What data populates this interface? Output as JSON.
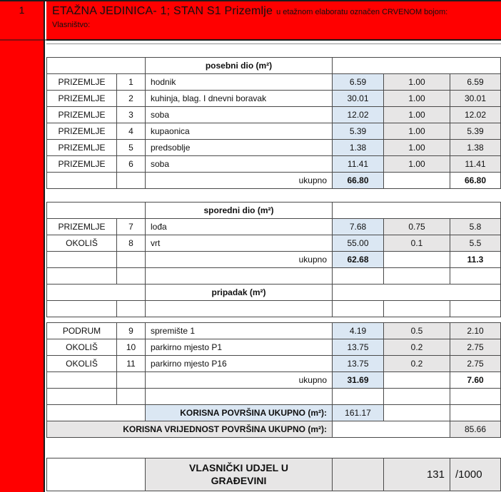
{
  "sidebar": {
    "index_label": "1"
  },
  "header": {
    "title_main": "ETAŽNA JEDINICA- 1; STAN S1 Prizemlje",
    "title_note": "u etažnom elaboratu označen CRVENOM bojom:",
    "subtitle": "Vlasništvo:"
  },
  "colors": {
    "accent_red": "#FF0000",
    "cell_blue": "#DBE7F3",
    "cell_gray": "#E7E6E6"
  },
  "sections": [
    {
      "title": "posebni dio (m²)",
      "rows": [
        {
          "loc": "PRIZEMLJE",
          "num": "1",
          "desc": "hodnik",
          "area": "6.59",
          "coef": "1.00",
          "val": "6.59"
        },
        {
          "loc": "PRIZEMLJE",
          "num": "2",
          "desc": "kuhinja, blag. I dnevni boravak",
          "area": "30.01",
          "coef": "1.00",
          "val": "30.01"
        },
        {
          "loc": "PRIZEMLJE",
          "num": "3",
          "desc": "soba",
          "area": "12.02",
          "coef": "1.00",
          "val": "12.02"
        },
        {
          "loc": "PRIZEMLJE",
          "num": "4",
          "desc": "kupaonica",
          "area": "5.39",
          "coef": "1.00",
          "val": "5.39"
        },
        {
          "loc": "PRIZEMLJE",
          "num": "5",
          "desc": "predsoblje",
          "area": "1.38",
          "coef": "1.00",
          "val": "1.38"
        },
        {
          "loc": "PRIZEMLJE",
          "num": "6",
          "desc": "soba",
          "area": "11.41",
          "coef": "1.00",
          "val": "11.41"
        }
      ],
      "total": {
        "label": "ukupno",
        "area": "66.80",
        "val": "66.80"
      }
    },
    {
      "title": "sporedni dio (m²)",
      "rows": [
        {
          "loc": "PRIZEMLJE",
          "num": "7",
          "desc": "lođa",
          "area": "7.68",
          "coef": "0.75",
          "val": "5.8"
        },
        {
          "loc": "OKOLIŠ",
          "num": "8",
          "desc": "vrt",
          "area": "55.00",
          "coef": "0.1",
          "val": "5.5"
        }
      ],
      "total": {
        "label": "ukupno",
        "area": "62.68",
        "val": "11.3"
      }
    },
    {
      "title": "pripadak (m²)",
      "rows": [
        {
          "loc": "PODRUM",
          "num": "9",
          "desc": "spremište 1",
          "area": "4.19",
          "coef": "0.5",
          "val": "2.10"
        },
        {
          "loc": "OKOLIŠ",
          "num": "10",
          "desc": "parkirno mjesto P1",
          "area": "13.75",
          "coef": "0.2",
          "val": "2.75"
        },
        {
          "loc": "OKOLIŠ",
          "num": "11",
          "desc": "parkirno mjesto P16",
          "area": "13.75",
          "coef": "0.2",
          "val": "2.75"
        }
      ],
      "total": {
        "label": "ukupno",
        "area": "31.69",
        "val": "7.60"
      }
    }
  ],
  "summary": {
    "korisna_povrsina_label": "KORISNA POVRŠINA UKUPNO (m²):",
    "korisna_povrsina_value": "161.17",
    "korisna_vrijednost_label": "KORISNA VRIJEDNOST POVRŠINA UKUPNO (m²):",
    "korisna_vrijednost_value": "85.66",
    "udjel_label_line1": "VLASNIČKI UDJEL U",
    "udjel_label_line2": "GRAĐEVINI",
    "udjel_value": "131",
    "udjel_denominator": "/1000"
  }
}
